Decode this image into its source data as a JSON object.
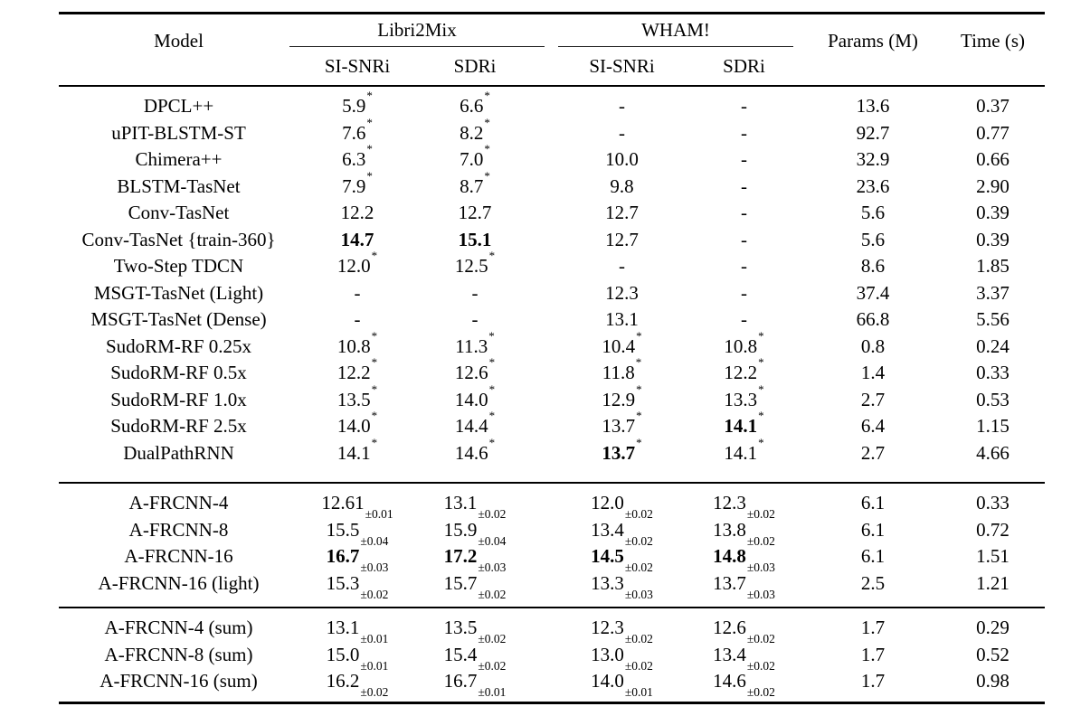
{
  "page": {
    "background": "#ffffff",
    "text_color": "#000000"
  },
  "table": {
    "header": {
      "model": "Model",
      "groups": [
        {
          "label": "Libri2Mix",
          "subcols": [
            "SI-SNRi",
            "SDRi"
          ]
        },
        {
          "label": "WHAM!",
          "subcols": [
            "SI-SNRi",
            "SDRi"
          ]
        }
      ],
      "params": "Params (M)",
      "time": "Time (s)"
    },
    "column_keys": [
      "libri2mix-si-snri",
      "libri2mix-sdri",
      "wham-si-snri",
      "wham-sdri"
    ],
    "sections": [
      {
        "name": "baselines",
        "rows": [
          {
            "model": "DPCL++",
            "cells": [
              {
                "v": "5.9",
                "sup": "*"
              },
              {
                "v": "6.6",
                "sup": "*"
              },
              {
                "v": "-"
              },
              {
                "v": "-"
              }
            ],
            "params": "13.6",
            "time": "0.37"
          },
          {
            "model": "uPIT-BLSTM-ST",
            "cells": [
              {
                "v": "7.6",
                "sup": "*"
              },
              {
                "v": "8.2",
                "sup": "*"
              },
              {
                "v": "-"
              },
              {
                "v": "-"
              }
            ],
            "params": "92.7",
            "time": "0.77"
          },
          {
            "model": "Chimera++",
            "cells": [
              {
                "v": "6.3",
                "sup": "*"
              },
              {
                "v": "7.0",
                "sup": "*"
              },
              {
                "v": "10.0"
              },
              {
                "v": "-"
              }
            ],
            "params": "32.9",
            "time": "0.66"
          },
          {
            "model": "BLSTM-TasNet",
            "cells": [
              {
                "v": "7.9",
                "sup": "*"
              },
              {
                "v": "8.7",
                "sup": "*"
              },
              {
                "v": "9.8"
              },
              {
                "v": "-"
              }
            ],
            "params": "23.6",
            "time": "2.90"
          },
          {
            "model": "Conv-TasNet",
            "cells": [
              {
                "v": "12.2"
              },
              {
                "v": "12.7"
              },
              {
                "v": "12.7"
              },
              {
                "v": "-"
              }
            ],
            "params": "5.6",
            "time": "0.39"
          },
          {
            "model": "Conv-TasNet {train-360}",
            "cells": [
              {
                "v": "14.7",
                "bold": true
              },
              {
                "v": "15.1",
                "bold": true
              },
              {
                "v": "12.7"
              },
              {
                "v": "-"
              }
            ],
            "params": "5.6",
            "time": "0.39"
          },
          {
            "model": "Two-Step TDCN",
            "cells": [
              {
                "v": "12.0",
                "sup": "*"
              },
              {
                "v": "12.5",
                "sup": "*"
              },
              {
                "v": "-"
              },
              {
                "v": "-"
              }
            ],
            "params": "8.6",
            "time": "1.85"
          },
          {
            "model": "MSGT-TasNet (Light)",
            "cells": [
              {
                "v": "-"
              },
              {
                "v": "-"
              },
              {
                "v": "12.3"
              },
              {
                "v": "-"
              }
            ],
            "params": "37.4",
            "time": "3.37"
          },
          {
            "model": "MSGT-TasNet (Dense)",
            "cells": [
              {
                "v": "-"
              },
              {
                "v": "-"
              },
              {
                "v": "13.1"
              },
              {
                "v": "-"
              }
            ],
            "params": "66.8",
            "time": "5.56"
          },
          {
            "model": "SudoRM-RF 0.25x",
            "cells": [
              {
                "v": "10.8",
                "sup": "*"
              },
              {
                "v": "11.3",
                "sup": "*"
              },
              {
                "v": "10.4",
                "sup": "*"
              },
              {
                "v": "10.8",
                "sup": "*"
              }
            ],
            "params": "0.8",
            "time": "0.24"
          },
          {
            "model": "SudoRM-RF 0.5x",
            "cells": [
              {
                "v": "12.2",
                "sup": "*"
              },
              {
                "v": "12.6",
                "sup": "*"
              },
              {
                "v": "11.8",
                "sup": "*"
              },
              {
                "v": "12.2",
                "sup": "*"
              }
            ],
            "params": "1.4",
            "time": "0.33"
          },
          {
            "model": "SudoRM-RF 1.0x",
            "cells": [
              {
                "v": "13.5",
                "sup": "*"
              },
              {
                "v": "14.0",
                "sup": "*"
              },
              {
                "v": "12.9",
                "sup": "*"
              },
              {
                "v": "13.3",
                "sup": "*"
              }
            ],
            "params": "2.7",
            "time": "0.53"
          },
          {
            "model": "SudoRM-RF 2.5x",
            "cells": [
              {
                "v": "14.0",
                "sup": "*"
              },
              {
                "v": "14.4",
                "sup": "*"
              },
              {
                "v": "13.7",
                "sup": "*"
              },
              {
                "v": "14.1",
                "sup": "*",
                "bold": true
              }
            ],
            "params": "6.4",
            "time": "1.15"
          },
          {
            "model": "DualPathRNN",
            "cells": [
              {
                "v": "14.1",
                "sup": "*"
              },
              {
                "v": "14.6",
                "sup": "*"
              },
              {
                "v": "13.7",
                "sup": "*",
                "bold": true
              },
              {
                "v": "14.1",
                "sup": "*"
              }
            ],
            "params": "2.7",
            "time": "4.66"
          }
        ]
      },
      {
        "name": "a-frcnn",
        "rows": [
          {
            "model": "A-FRCNN-4",
            "cells": [
              {
                "v": "12.61",
                "sub": "±0.01"
              },
              {
                "v": "13.1",
                "sub": "±0.02"
              },
              {
                "v": "12.0",
                "sub": "±0.02"
              },
              {
                "v": "12.3",
                "sub": "±0.02"
              }
            ],
            "params": "6.1",
            "time": "0.33"
          },
          {
            "model": "A-FRCNN-8",
            "cells": [
              {
                "v": "15.5",
                "sub": "±0.04"
              },
              {
                "v": "15.9",
                "sub": "±0.04"
              },
              {
                "v": "13.4",
                "sub": "±0.02"
              },
              {
                "v": "13.8",
                "sub": "±0.02"
              }
            ],
            "params": "6.1",
            "time": "0.72"
          },
          {
            "model": "A-FRCNN-16",
            "cells": [
              {
                "v": "16.7",
                "sub": "±0.03",
                "bold": true
              },
              {
                "v": "17.2",
                "sub": "±0.03",
                "bold": true
              },
              {
                "v": "14.5",
                "sub": "±0.02",
                "bold": true
              },
              {
                "v": "14.8",
                "sub": "±0.03",
                "bold": true
              }
            ],
            "params": "6.1",
            "time": "1.51"
          },
          {
            "model": "A-FRCNN-16 (light)",
            "cells": [
              {
                "v": "15.3",
                "sub": "±0.02"
              },
              {
                "v": "15.7",
                "sub": "±0.02"
              },
              {
                "v": "13.3",
                "sub": "±0.03"
              },
              {
                "v": "13.7",
                "sub": "±0.03"
              }
            ],
            "params": "2.5",
            "time": "1.21"
          }
        ]
      },
      {
        "name": "a-frcnn-sum",
        "rows": [
          {
            "model": "A-FRCNN-4 (sum)",
            "cells": [
              {
                "v": "13.1",
                "sub": "±0.01"
              },
              {
                "v": "13.5",
                "sub": "±0.02"
              },
              {
                "v": "12.3",
                "sub": "±0.02"
              },
              {
                "v": "12.6",
                "sub": "±0.02"
              }
            ],
            "params": "1.7",
            "time": "0.29"
          },
          {
            "model": "A-FRCNN-8 (sum)",
            "cells": [
              {
                "v": "15.0",
                "sub": "±0.01"
              },
              {
                "v": "15.4",
                "sub": "±0.02"
              },
              {
                "v": "13.0",
                "sub": "±0.02"
              },
              {
                "v": "13.4",
                "sub": "±0.02"
              }
            ],
            "params": "1.7",
            "time": "0.52"
          },
          {
            "model": "A-FRCNN-16 (sum)",
            "cells": [
              {
                "v": "16.2",
                "sub": "±0.02"
              },
              {
                "v": "16.7",
                "sub": "±0.01"
              },
              {
                "v": "14.0",
                "sub": "±0.01"
              },
              {
                "v": "14.6",
                "sub": "±0.02"
              }
            ],
            "params": "1.7",
            "time": "0.98"
          }
        ]
      }
    ]
  }
}
